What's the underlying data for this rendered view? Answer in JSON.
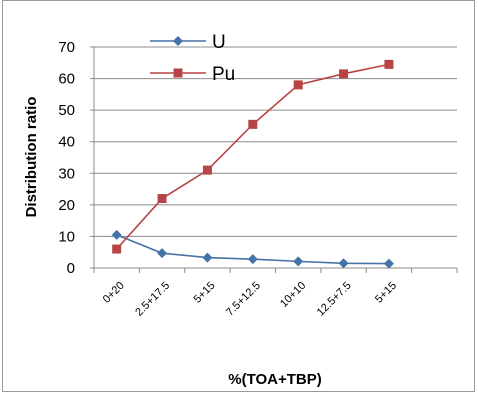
{
  "chart_data": {
    "type": "line",
    "categories": [
      "0+20",
      "2.5+17.5",
      "5+15",
      "7.5+12.5",
      "10+10",
      "12.5+7.5",
      "5+15"
    ],
    "series": [
      {
        "name": "U",
        "values": [
          10.5,
          4.7,
          3.3,
          2.8,
          2.1,
          1.5,
          1.4
        ],
        "color": "#4572A7",
        "marker": "diamond"
      },
      {
        "name": "Pu",
        "values": [
          6.0,
          22.0,
          31.0,
          45.5,
          58.0,
          61.5,
          64.5
        ],
        "color": "#B84545",
        "marker": "square"
      }
    ],
    "xlabel": "%(TOA+TBP)",
    "ylabel": "Distribution ratio",
    "ylim": [
      0,
      70
    ],
    "yticks": [
      0,
      10,
      20,
      30,
      40,
      50,
      60,
      70
    ],
    "grid": true,
    "legend": "top-left inside plot"
  }
}
